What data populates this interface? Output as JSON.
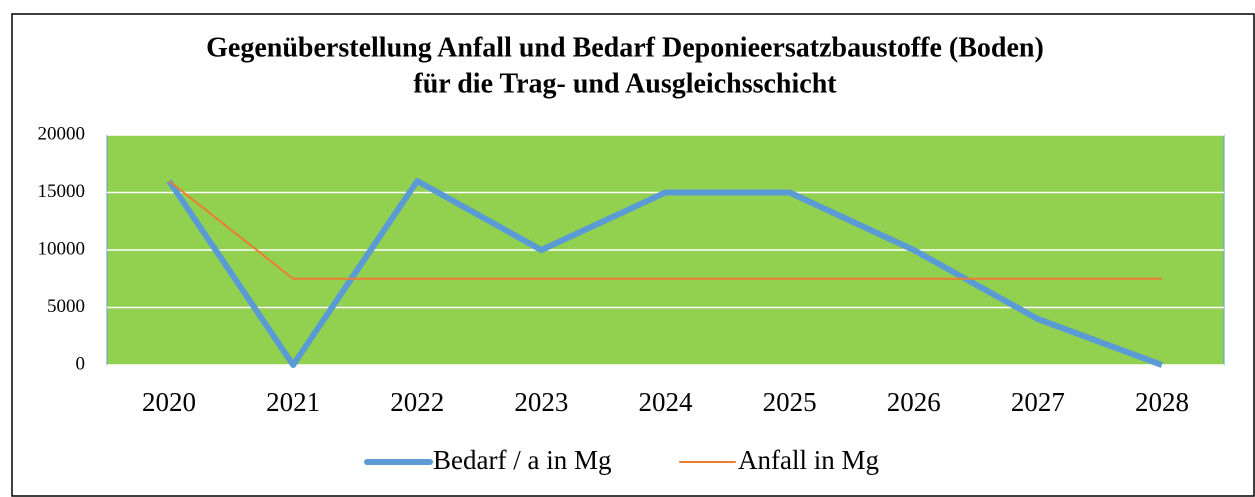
{
  "chart_data": {
    "type": "line",
    "title": [
      "Gegenüberstellung Anfall und Bedarf Deponieersatzbaustoffe (Boden)",
      "für die Trag- und Ausgleichsschicht"
    ],
    "categories": [
      "2020",
      "2021",
      "2022",
      "2023",
      "2024",
      "2025",
      "2026",
      "2027",
      "2028"
    ],
    "series": [
      {
        "name": "Bedarf / a in Mg",
        "color": "#5b9bd5",
        "values": [
          16000,
          0,
          16000,
          10000,
          15000,
          15000,
          10000,
          4000,
          0
        ]
      },
      {
        "name": "Anfall in Mg",
        "color": "#ed7d31",
        "values": [
          16000,
          7500,
          7500,
          7500,
          7500,
          7500,
          7500,
          7500,
          7500
        ]
      }
    ],
    "ylim": [
      0,
      20000
    ],
    "yticks": [
      0,
      5000,
      10000,
      15000,
      20000
    ],
    "grid": true,
    "plot_background": "#92d050",
    "legend": "bottom"
  }
}
